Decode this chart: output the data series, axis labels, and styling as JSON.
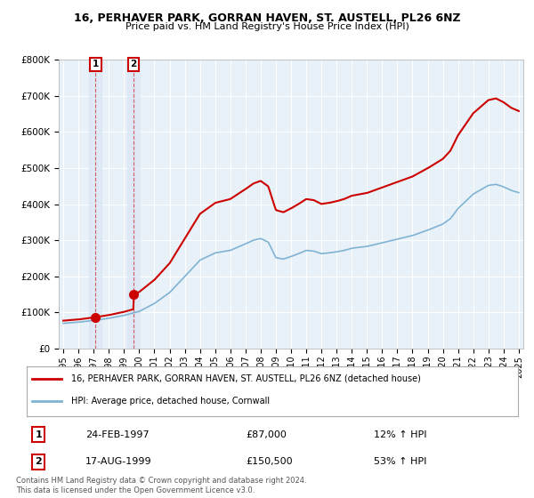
{
  "title": "16, PERHAVER PARK, GORRAN HAVEN, ST. AUSTELL, PL26 6NZ",
  "subtitle": "Price paid vs. HM Land Registry's House Price Index (HPI)",
  "legend_line1": "16, PERHAVER PARK, GORRAN HAVEN, ST. AUSTELL, PL26 6NZ (detached house)",
  "legend_line2": "HPI: Average price, detached house, Cornwall",
  "transaction1_date": "24-FEB-1997",
  "transaction1_price": "£87,000",
  "transaction1_price_val": 87000,
  "transaction1_pct": "12% ↑ HPI",
  "transaction2_date": "17-AUG-1999",
  "transaction2_price": "£150,500",
  "transaction2_price_val": 150500,
  "transaction2_pct": "53% ↑ HPI",
  "footnote": "Contains HM Land Registry data © Crown copyright and database right 2024.\nThis data is licensed under the Open Government Licence v3.0.",
  "property_color": "#cc0000",
  "hpi_color": "#7fb3d3",
  "background_plot": "#e8f0f8",
  "background_fig": "#ffffff",
  "ylim": [
    0,
    800000
  ],
  "xlim_start": 1994.7,
  "xlim_end": 2025.3,
  "t1": 1997.12,
  "t2": 1999.62
}
